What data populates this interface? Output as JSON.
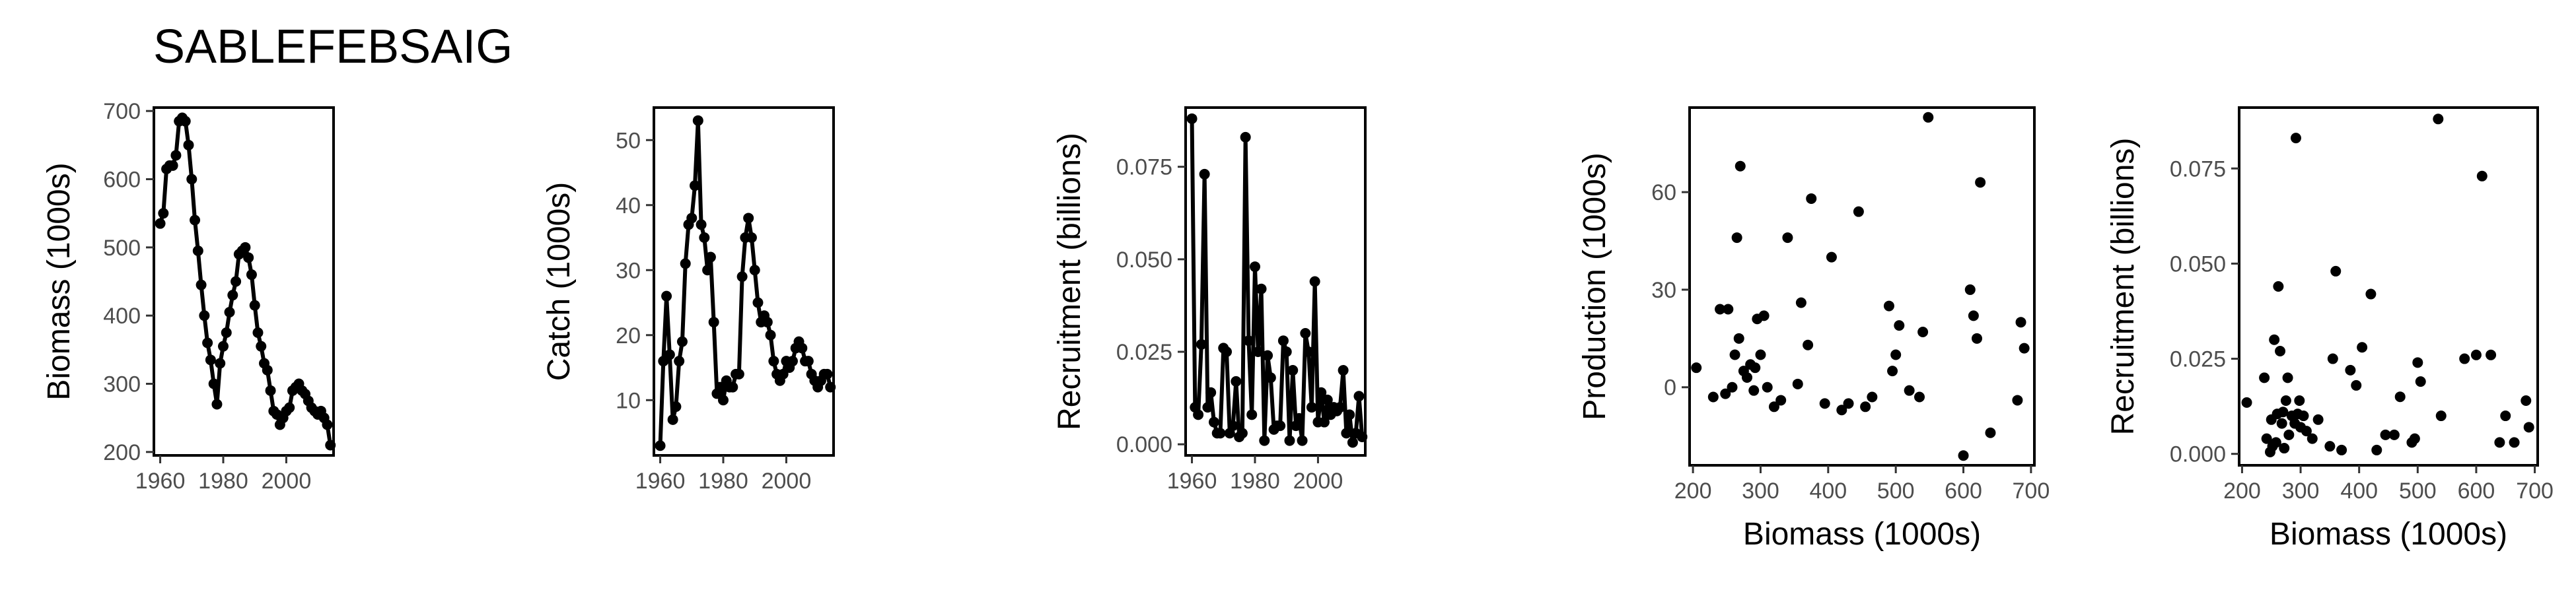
{
  "title": "SABLEFEBSAIG",
  "chart_data": [
    {
      "type": "line",
      "xlabel": "",
      "ylabel": "Biomass (1000s)",
      "xlim": [
        1958,
        2015
      ],
      "ylim": [
        195,
        705
      ],
      "xticks": [
        1960,
        1980,
        2000
      ],
      "yticks": [
        200,
        300,
        400,
        500,
        600,
        700
      ],
      "grid": false,
      "x": [
        1960,
        1961,
        1962,
        1963,
        1964,
        1965,
        1966,
        1967,
        1968,
        1969,
        1970,
        1971,
        1972,
        1973,
        1974,
        1975,
        1976,
        1977,
        1978,
        1979,
        1980,
        1981,
        1982,
        1983,
        1984,
        1985,
        1986,
        1987,
        1988,
        1989,
        1990,
        1991,
        1992,
        1993,
        1994,
        1995,
        1996,
        1997,
        1998,
        1999,
        2000,
        2001,
        2002,
        2003,
        2004,
        2005,
        2006,
        2007,
        2008,
        2009,
        2010,
        2011,
        2012,
        2013,
        2014
      ],
      "y": [
        535,
        550,
        615,
        620,
        620,
        635,
        685,
        690,
        685,
        650,
        600,
        540,
        495,
        445,
        400,
        360,
        335,
        300,
        270,
        330,
        355,
        375,
        405,
        430,
        450,
        490,
        495,
        500,
        485,
        460,
        415,
        375,
        355,
        330,
        320,
        290,
        260,
        255,
        240,
        250,
        260,
        265,
        290,
        295,
        300,
        290,
        285,
        275,
        265,
        260,
        255,
        260,
        250,
        240,
        210
      ]
    },
    {
      "type": "line",
      "xlabel": "",
      "ylabel": "Catch (1000s)",
      "xlim": [
        1958,
        2015
      ],
      "ylim": [
        1.5,
        55
      ],
      "xticks": [
        1960,
        1980,
        2000
      ],
      "yticks": [
        10,
        20,
        30,
        40,
        50
      ],
      "grid": false,
      "x": [
        1960,
        1961,
        1962,
        1963,
        1964,
        1965,
        1966,
        1967,
        1968,
        1969,
        1970,
        1971,
        1972,
        1973,
        1974,
        1975,
        1976,
        1977,
        1978,
        1979,
        1980,
        1981,
        1982,
        1983,
        1984,
        1985,
        1986,
        1987,
        1988,
        1989,
        1990,
        1991,
        1992,
        1993,
        1994,
        1995,
        1996,
        1997,
        1998,
        1999,
        2000,
        2001,
        2002,
        2003,
        2004,
        2005,
        2006,
        2007,
        2008,
        2009,
        2010,
        2011,
        2012,
        2013,
        2014
      ],
      "y": [
        3,
        16,
        26,
        17,
        7,
        9,
        16,
        19,
        31,
        37,
        38,
        43,
        53,
        37,
        35,
        30,
        32,
        22,
        11,
        12,
        10,
        13,
        12,
        12,
        14,
        14,
        29,
        35,
        38,
        35,
        30,
        25,
        22,
        23,
        22,
        20,
        16,
        14,
        13,
        14,
        16,
        15,
        16,
        18,
        19,
        18,
        16,
        16,
        14,
        13,
        12,
        13,
        14,
        14,
        12
      ]
    },
    {
      "type": "line",
      "xlabel": "",
      "ylabel": "Recruitment (billions)",
      "xlim": [
        1958,
        2015
      ],
      "ylim": [
        -0.003,
        0.091
      ],
      "xticks": [
        1960,
        1980,
        2000
      ],
      "yticks": [
        0.0,
        0.025,
        0.05,
        0.075
      ],
      "ytick_labels": [
        "0.000",
        "0.025",
        "0.050",
        "0.075"
      ],
      "grid": false,
      "x": [
        1960,
        1961,
        1962,
        1963,
        1964,
        1965,
        1966,
        1967,
        1968,
        1969,
        1970,
        1971,
        1972,
        1973,
        1974,
        1975,
        1976,
        1977,
        1978,
        1979,
        1980,
        1981,
        1982,
        1983,
        1984,
        1985,
        1986,
        1987,
        1988,
        1989,
        1990,
        1991,
        1992,
        1993,
        1994,
        1995,
        1996,
        1997,
        1998,
        1999,
        2000,
        2001,
        2002,
        2003,
        2004,
        2005,
        2006,
        2007,
        2008,
        2009,
        2010,
        2011,
        2012,
        2013,
        2014
      ],
      "y": [
        0.088,
        0.01,
        0.008,
        0.027,
        0.073,
        0.01,
        0.014,
        0.006,
        0.003,
        0.003,
        0.026,
        0.025,
        0.003,
        0.005,
        0.017,
        0.002,
        0.003,
        0.083,
        0.028,
        0.008,
        0.048,
        0.025,
        0.042,
        0.001,
        0.024,
        0.018,
        0.004,
        0.005,
        0.005,
        0.028,
        0.025,
        0.001,
        0.02,
        0.005,
        0.007,
        0.001,
        0.03,
        0.025,
        0.01,
        0.044,
        0.006,
        0.014,
        0.006,
        0.012,
        0.008,
        0.01,
        0.009,
        0.01,
        0.02,
        0.003,
        0.008,
        0.0005,
        0.003,
        0.013,
        0.002
      ]
    },
    {
      "type": "scatter",
      "xlabel": "Biomass (1000s)",
      "ylabel": "Production (1000s)",
      "xlim": [
        195,
        705
      ],
      "ylim": [
        -24,
        86
      ],
      "xticks": [
        200,
        300,
        400,
        500,
        600,
        700
      ],
      "yticks": [
        0,
        30,
        60
      ],
      "grid": false,
      "x": [
        205,
        230,
        240,
        248,
        252,
        258,
        262,
        265,
        268,
        270,
        275,
        280,
        285,
        290,
        292,
        295,
        300,
        305,
        310,
        320,
        330,
        340,
        355,
        360,
        370,
        375,
        395,
        405,
        420,
        430,
        445,
        455,
        465,
        490,
        495,
        500,
        505,
        520,
        535,
        540,
        548,
        600,
        610,
        615,
        620,
        625,
        640,
        680,
        685,
        690
      ],
      "y": [
        6,
        -3,
        24,
        -2,
        24,
        0,
        10,
        46,
        15,
        68,
        5,
        3,
        7,
        -1,
        6,
        21,
        10,
        22,
        0,
        -6,
        -4,
        46,
        1,
        26,
        13,
        58,
        -5,
        40,
        -7,
        -5,
        54,
        -6,
        -3,
        25,
        5,
        10,
        19,
        -1,
        -3,
        17,
        83,
        -21,
        30,
        22,
        15,
        63,
        -14,
        -4,
        20,
        12
      ]
    },
    {
      "type": "scatter",
      "xlabel": "Biomass (1000s)",
      "ylabel": "Recruitment (billions)",
      "xlim": [
        195,
        705
      ],
      "ylim": [
        -0.003,
        0.091
      ],
      "xticks": [
        200,
        300,
        400,
        500,
        600,
        700
      ],
      "yticks": [
        0.0,
        0.025,
        0.05,
        0.075
      ],
      "ytick_labels": [
        "0.000",
        "0.025",
        "0.050",
        "0.075"
      ],
      "grid": false,
      "x": [
        208,
        238,
        242,
        248,
        250,
        252,
        255,
        258,
        260,
        262,
        265,
        268,
        270,
        272,
        275,
        278,
        280,
        285,
        290,
        292,
        295,
        298,
        300,
        305,
        310,
        320,
        330,
        350,
        355,
        360,
        370,
        385,
        395,
        405,
        420,
        430,
        445,
        460,
        470,
        490,
        495,
        500,
        505,
        535,
        540,
        580,
        600,
        610,
        625,
        640,
        650,
        665,
        685,
        690
      ],
      "y": [
        0.0135,
        0.02,
        0.004,
        0.0005,
        0.009,
        0.002,
        0.03,
        0.003,
        0.0105,
        0.044,
        0.027,
        0.008,
        0.011,
        0.0015,
        0.014,
        0.02,
        0.005,
        0.01,
        0.008,
        0.083,
        0.0105,
        0.014,
        0.007,
        0.01,
        0.006,
        0.004,
        0.009,
        0.002,
        0.025,
        0.048,
        0.001,
        0.022,
        0.018,
        0.028,
        0.042,
        0.001,
        0.005,
        0.005,
        0.015,
        0.003,
        0.004,
        0.024,
        0.019,
        0.088,
        0.01,
        0.025,
        0.026,
        0.073,
        0.026,
        0.003,
        0.01,
        0.003,
        0.014,
        0.007
      ]
    }
  ]
}
